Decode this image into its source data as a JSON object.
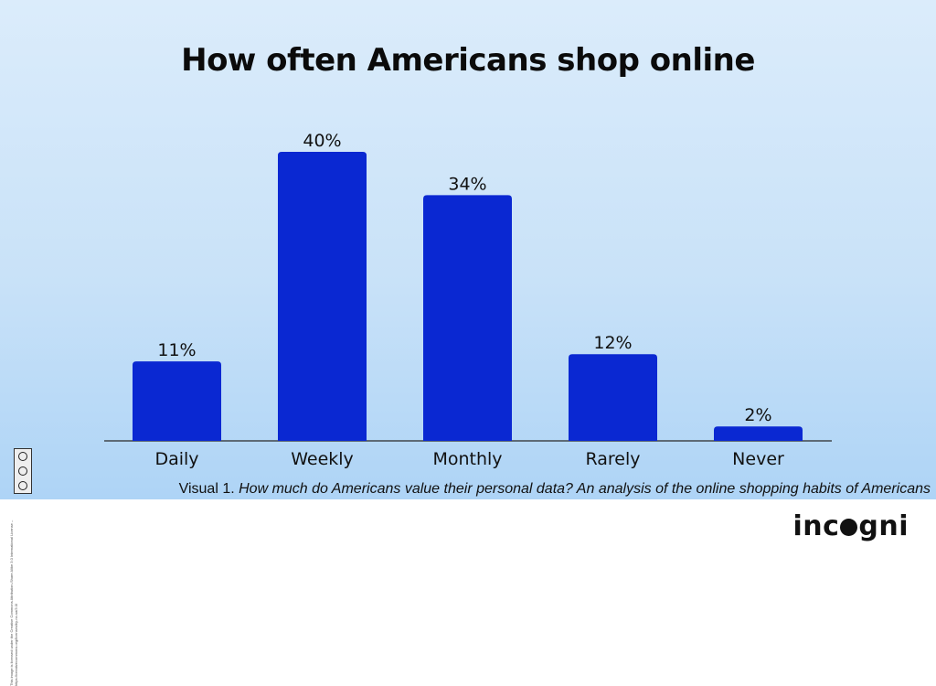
{
  "chart_data": {
    "type": "bar",
    "title": "How often Americans shop online",
    "categories": [
      "Daily",
      "Weekly",
      "Monthly",
      "Rarely",
      "Never"
    ],
    "values": [
      11,
      40,
      34,
      12,
      2
    ],
    "value_labels": [
      "11%",
      "40%",
      "34%",
      "12%",
      "2%"
    ],
    "unit": "%",
    "ylim": [
      0,
      40
    ],
    "grid": false,
    "bar_color": "#0a28d2"
  },
  "caption": {
    "prefix": "Visual 1. ",
    "text": "How much do Americans value their personal data? An analysis of the online shopping habits of Americans"
  },
  "license": {
    "text": "This image is licensed under the Creative Commons Attribution-Share Alike 3.0 International License – https://creativecommons.org/licenses/by-nc-sa/3.0/"
  },
  "brand": {
    "name_start": "inc",
    "name_end": "gni"
  },
  "colors": {
    "background": "#c9e2f8",
    "bar": "#0a28d2",
    "text": "#0b0b0b"
  }
}
